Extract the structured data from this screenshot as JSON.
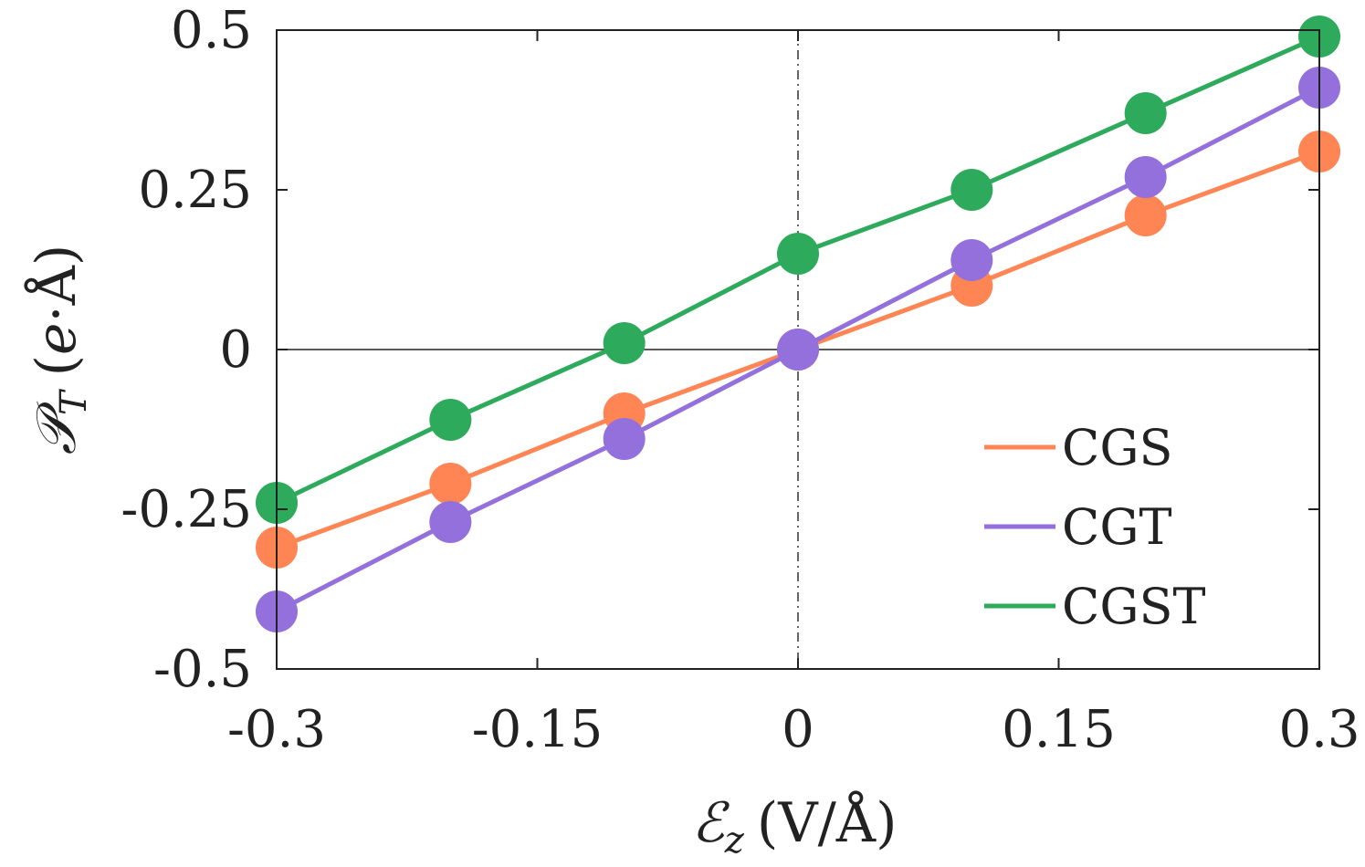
{
  "chart_data": {
    "type": "line",
    "title": "",
    "x": [
      -0.3,
      -0.2,
      -0.1,
      0,
      0.1,
      0.2,
      0.3
    ],
    "xlim": [
      -0.3,
      0.3
    ],
    "ylim": [
      -0.5,
      0.5
    ],
    "xticks": [
      "-0.3",
      "-0.15",
      "0",
      "0.15",
      "0.3"
    ],
    "yticks": [
      "0.5",
      "0.25",
      "0",
      "-0.25",
      "-0.5"
    ],
    "xlabel": {
      "symbol": "ℰ",
      "subscript": "z",
      "unit": "(V/Å)"
    },
    "ylabel": {
      "symbol": "𝒫",
      "subscript": "T",
      "unit_open": "(",
      "unit_math": "e",
      "unit_rest": "·Å)"
    },
    "legend_position": "bottom-right",
    "series": [
      {
        "name": "CGS",
        "color": "#FF8554",
        "values": [
          -0.31,
          -0.21,
          -0.1,
          0.0,
          0.1,
          0.21,
          0.31
        ]
      },
      {
        "name": "CGT",
        "color": "#9370DB",
        "values": [
          -0.41,
          -0.27,
          -0.14,
          0.0,
          0.14,
          0.27,
          0.41
        ]
      },
      {
        "name": "CGST",
        "color": "#2EAA5C",
        "values": [
          -0.24,
          -0.11,
          0.01,
          0.15,
          0.25,
          0.37,
          0.49
        ]
      }
    ]
  }
}
